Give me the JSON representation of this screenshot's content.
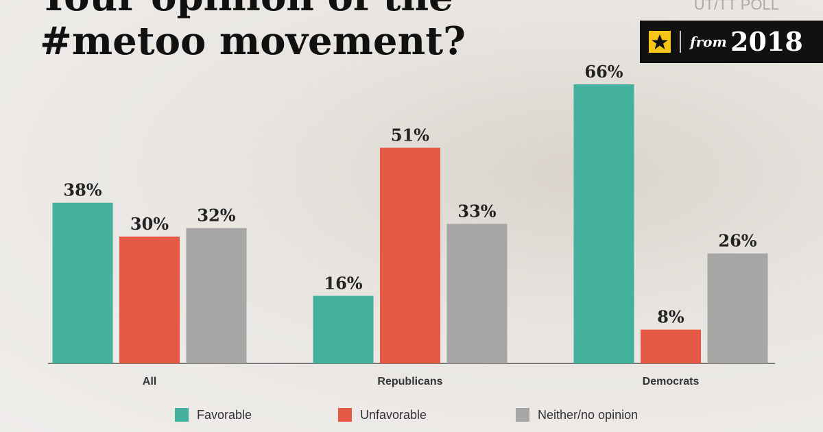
{
  "chart_data": {
    "type": "bar",
    "title": "Your opinion of the #metoo movement?",
    "source": "UT/TT POLL",
    "badge": {
      "prefix": "from",
      "year": "2018"
    },
    "categories": [
      "All",
      "Republicans",
      "Democrats"
    ],
    "series": [
      {
        "name": "Favorable",
        "color": "#44b09e",
        "values": [
          38,
          16,
          66
        ],
        "value_labels": [
          "38%",
          "16%",
          "66%"
        ]
      },
      {
        "name": "Unfavorable",
        "color": "#e55a45",
        "values": [
          30,
          51,
          8
        ],
        "value_labels": [
          "30%",
          "51%",
          "8%"
        ]
      },
      {
        "name": "Neither/no opinion",
        "color": "#a6a6a6",
        "values": [
          32,
          33,
          26
        ],
        "value_labels": [
          "32%",
          "33%",
          "26%"
        ]
      }
    ]
  }
}
